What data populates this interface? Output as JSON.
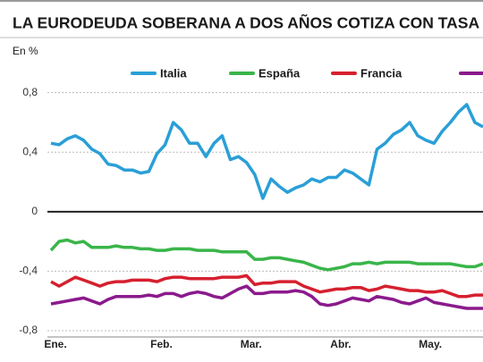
{
  "chart_data": {
    "type": "line",
    "title": "LA EURODEUDA SOBERANA A DOS AÑOS COTIZA CON TASA",
    "y_label": "En %",
    "categories": [
      "Ene.",
      null,
      null,
      null,
      null,
      null,
      null,
      null,
      null,
      null,
      null,
      null,
      null,
      "Feb.",
      null,
      null,
      null,
      null,
      null,
      null,
      null,
      null,
      null,
      null,
      "Mar.",
      null,
      null,
      null,
      null,
      null,
      null,
      null,
      null,
      null,
      null,
      "Abr.",
      null,
      null,
      null,
      null,
      null,
      null,
      null,
      null,
      null,
      null,
      "May.",
      null,
      null,
      null,
      null,
      null,
      null,
      null
    ],
    "series": [
      {
        "name": "Italia",
        "color": "#2a9fd6",
        "values": [
          0.46,
          0.45,
          0.49,
          0.51,
          0.48,
          0.42,
          0.39,
          0.32,
          0.31,
          0.28,
          0.28,
          0.26,
          0.27,
          0.39,
          0.45,
          0.6,
          0.55,
          0.46,
          0.46,
          0.37,
          0.46,
          0.51,
          0.35,
          0.37,
          0.33,
          0.25,
          0.09,
          0.22,
          0.17,
          0.13,
          0.16,
          0.18,
          0.22,
          0.2,
          0.23,
          0.23,
          0.28,
          0.26,
          0.22,
          0.18,
          0.42,
          0.46,
          0.52,
          0.55,
          0.6,
          0.51,
          0.48,
          0.46,
          0.54,
          0.6,
          0.67,
          0.72,
          0.6,
          0.57
        ]
      },
      {
        "name": "España",
        "color": "#3ab54a",
        "values": [
          -0.26,
          -0.2,
          -0.19,
          -0.21,
          -0.2,
          -0.24,
          -0.24,
          -0.24,
          -0.23,
          -0.24,
          -0.24,
          -0.25,
          -0.25,
          -0.26,
          -0.26,
          -0.25,
          -0.25,
          -0.25,
          -0.26,
          -0.26,
          -0.26,
          -0.27,
          -0.27,
          -0.27,
          -0.27,
          -0.32,
          -0.32,
          -0.31,
          -0.31,
          -0.32,
          -0.33,
          -0.34,
          -0.36,
          -0.38,
          -0.39,
          -0.38,
          -0.37,
          -0.35,
          -0.35,
          -0.34,
          -0.35,
          -0.34,
          -0.34,
          -0.34,
          -0.34,
          -0.35,
          -0.35,
          -0.35,
          -0.35,
          -0.35,
          -0.36,
          -0.37,
          -0.37,
          -0.35
        ]
      },
      {
        "name": "Francia",
        "color": "#d6202f",
        "values": [
          -0.47,
          -0.5,
          -0.47,
          -0.44,
          -0.46,
          -0.48,
          -0.5,
          -0.48,
          -0.47,
          -0.47,
          -0.46,
          -0.46,
          -0.46,
          -0.47,
          -0.45,
          -0.44,
          -0.44,
          -0.45,
          -0.45,
          -0.45,
          -0.45,
          -0.44,
          -0.44,
          -0.44,
          -0.43,
          -0.49,
          -0.48,
          -0.48,
          -0.47,
          -0.47,
          -0.47,
          -0.5,
          -0.52,
          -0.54,
          -0.53,
          -0.52,
          -0.52,
          -0.51,
          -0.51,
          -0.53,
          -0.52,
          -0.5,
          -0.51,
          -0.52,
          -0.53,
          -0.53,
          -0.54,
          -0.54,
          -0.53,
          -0.55,
          -0.57,
          -0.57,
          -0.56,
          -0.56
        ]
      },
      {
        "color": "#8b1a8c",
        "values": [
          -0.62,
          -0.61,
          -0.6,
          -0.59,
          -0.58,
          -0.6,
          -0.62,
          -0.59,
          -0.57,
          -0.57,
          -0.57,
          -0.57,
          -0.56,
          -0.57,
          -0.55,
          -0.55,
          -0.57,
          -0.55,
          -0.54,
          -0.55,
          -0.57,
          -0.58,
          -0.55,
          -0.52,
          -0.5,
          -0.55,
          -0.55,
          -0.54,
          -0.54,
          -0.54,
          -0.53,
          -0.54,
          -0.57,
          -0.62,
          -0.63,
          -0.62,
          -0.6,
          -0.58,
          -0.59,
          -0.6,
          -0.57,
          -0.58,
          -0.59,
          -0.61,
          -0.62,
          -0.6,
          -0.58,
          -0.61,
          -0.62,
          -0.63,
          -0.64,
          -0.65,
          -0.65,
          -0.65
        ]
      }
    ],
    "ylim": [
      -0.83,
      0.84
    ],
    "yticks": [
      {
        "value": 0.8,
        "label": "0,8"
      },
      {
        "value": 0.4,
        "label": "0,4"
      },
      0,
      {
        "value": -0.4,
        "label": "-0,4"
      },
      {
        "value": -0.8,
        "label": "-0,8"
      }
    ],
    "grid": true,
    "legend": "top"
  }
}
